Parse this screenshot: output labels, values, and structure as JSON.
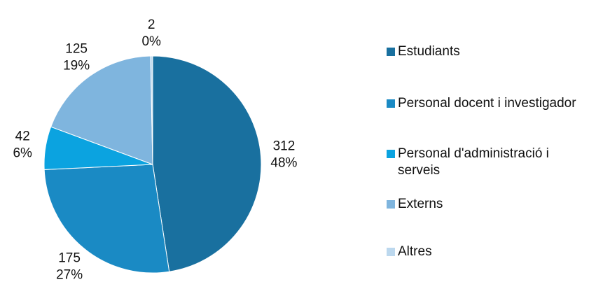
{
  "chart_data": {
    "type": "pie",
    "categories": [
      "Estudiants",
      "Personal docent i investigador",
      "Personal d'administració i serveis",
      "Externs",
      "Altres"
    ],
    "values": [
      312,
      175,
      42,
      125,
      2
    ],
    "percent_labels": [
      "48%",
      "27%",
      "6%",
      "19%",
      "0%"
    ],
    "colors": [
      "#19709f",
      "#1a8ac4",
      "#0ba3e0",
      "#7fb5de",
      "#bcd8ee"
    ],
    "legend": "right"
  }
}
